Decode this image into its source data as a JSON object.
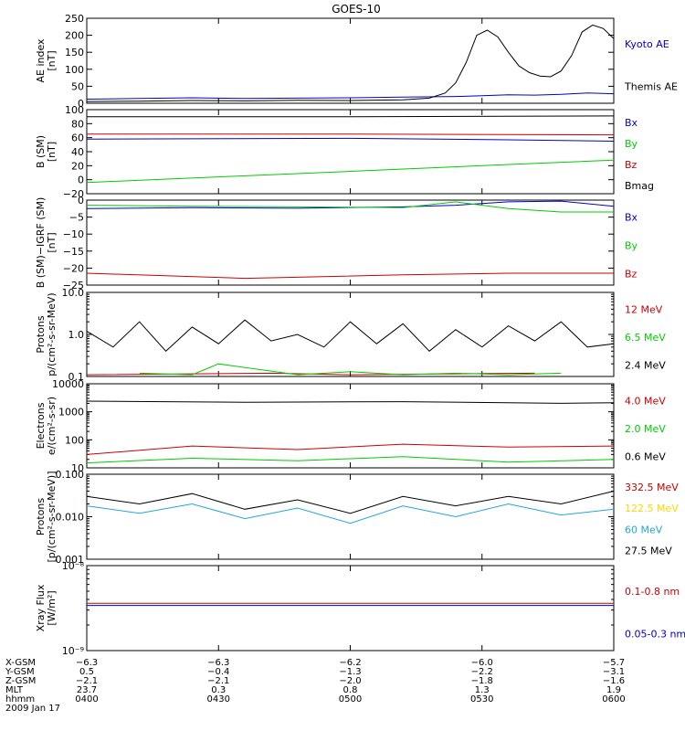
{
  "title": "GOES-10",
  "chart_data": [
    {
      "type": "line",
      "ylabel": [
        "AE index",
        "[nT]"
      ],
      "ylim": [
        0,
        250
      ],
      "yticks": [
        0,
        50,
        100,
        150,
        200,
        250
      ],
      "ytick_labels": [
        "0",
        "50",
        "100",
        "150",
        "200",
        "250"
      ],
      "series": [
        {
          "name": "Kyoto AE",
          "color": "#0000cc",
          "x": [
            0,
            0.1,
            0.2,
            0.3,
            0.4,
            0.5,
            0.6,
            0.7,
            0.75,
            0.8,
            0.85,
            0.9,
            0.95,
            1.0
          ],
          "y": [
            12,
            14,
            16,
            14,
            15,
            16,
            18,
            20,
            22,
            25,
            24,
            26,
            30,
            28
          ]
        },
        {
          "name": "Themis AE",
          "color": "#000000",
          "x": [
            0,
            0.1,
            0.2,
            0.3,
            0.4,
            0.5,
            0.6,
            0.65,
            0.68,
            0.7,
            0.72,
            0.74,
            0.76,
            0.78,
            0.8,
            0.82,
            0.84,
            0.86,
            0.88,
            0.9,
            0.92,
            0.94,
            0.96,
            0.98,
            1.0
          ],
          "y": [
            5,
            6,
            8,
            7,
            9,
            8,
            10,
            15,
            30,
            60,
            120,
            200,
            215,
            195,
            150,
            110,
            90,
            80,
            78,
            95,
            140,
            210,
            230,
            220,
            190
          ]
        }
      ]
    },
    {
      "type": "line",
      "ylabel": [
        "B (SM)",
        "[nT]"
      ],
      "ylim": [
        -20,
        100
      ],
      "yticks": [
        -20,
        0,
        20,
        40,
        60,
        80,
        100
      ],
      "ytick_labels": [
        "−20",
        "0",
        "20",
        "40",
        "60",
        "80",
        "100"
      ],
      "series": [
        {
          "name": "Bx",
          "color": "#0000cc",
          "x": [
            0,
            0.5,
            0.8,
            1.0
          ],
          "y": [
            58,
            59,
            57,
            55
          ]
        },
        {
          "name": "By",
          "color": "#00cc00",
          "x": [
            0,
            0.25,
            0.5,
            0.75,
            1.0
          ],
          "y": [
            -4,
            4,
            12,
            20,
            28
          ]
        },
        {
          "name": "Bz",
          "color": "#cc0000",
          "x": [
            0,
            0.5,
            1.0
          ],
          "y": [
            65,
            65,
            64
          ]
        },
        {
          "name": "Bmag",
          "color": "#000000",
          "x": [
            0,
            0.5,
            1.0
          ],
          "y": [
            90,
            90,
            91
          ]
        }
      ]
    },
    {
      "type": "line",
      "ylabel": [
        "B (SM)−IGRF (SM)",
        "[nT]"
      ],
      "ylim": [
        -25,
        0
      ],
      "yticks": [
        -25,
        -20,
        -15,
        -10,
        -5,
        0
      ],
      "ytick_labels": [
        "−25",
        "−20",
        "−15",
        "−10",
        "−5",
        "0"
      ],
      "series": [
        {
          "name": "Bx",
          "color": "#0000cc",
          "x": [
            0,
            0.2,
            0.4,
            0.6,
            0.7,
            0.8,
            0.9,
            1.0
          ],
          "y": [
            -2.5,
            -2.2,
            -2.4,
            -2.0,
            -1.5,
            -0.5,
            -0.3,
            -1.8
          ]
        },
        {
          "name": "By",
          "color": "#00cc00",
          "x": [
            0,
            0.2,
            0.4,
            0.6,
            0.7,
            0.8,
            0.9,
            1.0
          ],
          "y": [
            -1.5,
            -1.8,
            -2.0,
            -2.2,
            -0.5,
            -2.5,
            -3.5,
            -3.5
          ]
        },
        {
          "name": "Bz",
          "color": "#cc0000",
          "x": [
            0,
            0.3,
            0.6,
            0.8,
            1.0
          ],
          "y": [
            -21.5,
            -23,
            -22,
            -21.5,
            -21.5
          ]
        }
      ]
    },
    {
      "type": "line",
      "yscale": "log",
      "ylabel": [
        "Protons",
        "p/(cm²-s-sr-MeV)"
      ],
      "ylim": [
        0.1,
        10.0
      ],
      "yticks": [
        0.1,
        1.0,
        10.0
      ],
      "ytick_labels": [
        "0.1",
        "1.0",
        "10.0"
      ],
      "series": [
        {
          "name": "12 MeV",
          "color": "#cc0000",
          "x": [
            0,
            0.35,
            0.5,
            0.85
          ],
          "y": [
            0.11,
            0.12,
            0.11,
            0.12
          ]
        },
        {
          "name": "6.5 MeV",
          "color": "#00cc00",
          "x": [
            0.1,
            0.2,
            0.25,
            0.4,
            0.5,
            0.6,
            0.7,
            0.8,
            0.9
          ],
          "y": [
            0.12,
            0.11,
            0.2,
            0.11,
            0.13,
            0.11,
            0.12,
            0.11,
            0.12
          ]
        },
        {
          "name": "2.4 MeV",
          "color": "#000000",
          "x": [
            0,
            0.05,
            0.1,
            0.15,
            0.2,
            0.25,
            0.3,
            0.35,
            0.4,
            0.45,
            0.5,
            0.55,
            0.6,
            0.65,
            0.7,
            0.75,
            0.8,
            0.85,
            0.9,
            0.95,
            1.0
          ],
          "y": [
            1.2,
            0.5,
            2.0,
            0.4,
            1.5,
            0.6,
            2.2,
            0.7,
            1.0,
            0.5,
            2.0,
            0.6,
            1.8,
            0.4,
            1.3,
            0.5,
            1.6,
            0.7,
            2.0,
            0.5,
            0.6
          ]
        }
      ]
    },
    {
      "type": "line",
      "yscale": "log",
      "ylabel": [
        "Electrons",
        "e/(cm²-s-sr)"
      ],
      "ylim": [
        10,
        10000
      ],
      "yticks": [
        10,
        100,
        1000,
        10000
      ],
      "ytick_labels": [
        "10",
        "100",
        "1000",
        "10000"
      ],
      "series": [
        {
          "name": "4.0 MeV",
          "color": "#cc0000",
          "x": [
            0,
            0.2,
            0.4,
            0.6,
            0.8,
            1.0
          ],
          "y": [
            30,
            60,
            45,
            70,
            55,
            60
          ]
        },
        {
          "name": "2.0 MeV",
          "color": "#00cc00",
          "x": [
            0,
            0.2,
            0.4,
            0.6,
            0.8,
            1.0
          ],
          "y": [
            15,
            22,
            18,
            25,
            16,
            20
          ]
        },
        {
          "name": "0.6 MeV",
          "color": "#000000",
          "x": [
            0,
            0.3,
            0.6,
            0.9,
            1.0
          ],
          "y": [
            2400,
            2200,
            2300,
            2000,
            2100
          ]
        }
      ]
    },
    {
      "type": "line",
      "yscale": "log",
      "ylabel": [
        "Protons",
        "[p/(cm²-s-sr-MeV)]"
      ],
      "ylim": [
        0.001,
        0.1
      ],
      "yticks": [
        0.001,
        0.01,
        0.1
      ],
      "ytick_labels": [
        "0.001",
        "0.010",
        "0.100"
      ],
      "series": [
        {
          "name": "332.5 MeV",
          "color": "#cc0000",
          "x": [],
          "y": []
        },
        {
          "name": "122.5 MeV",
          "color": "#ffd700",
          "x": [],
          "y": []
        },
        {
          "name": "60 MeV",
          "color": "#22a7d9",
          "x": [
            0,
            0.1,
            0.2,
            0.3,
            0.4,
            0.5,
            0.6,
            0.7,
            0.8,
            0.9,
            1.0
          ],
          "y": [
            0.018,
            0.012,
            0.02,
            0.009,
            0.016,
            0.007,
            0.018,
            0.01,
            0.02,
            0.011,
            0.015
          ]
        },
        {
          "name": "27.5 MeV",
          "color": "#000000",
          "x": [
            0,
            0.1,
            0.2,
            0.3,
            0.4,
            0.5,
            0.6,
            0.7,
            0.8,
            0.9,
            1.0
          ],
          "y": [
            0.03,
            0.02,
            0.035,
            0.015,
            0.025,
            0.012,
            0.03,
            0.018,
            0.03,
            0.02,
            0.04
          ]
        }
      ]
    },
    {
      "type": "line",
      "yscale": "log",
      "ylabel": [
        "Xray Flux",
        "[W/m²]"
      ],
      "ylim": [
        1e-09,
        1e-08
      ],
      "yticks": [
        1e-09,
        1e-08
      ],
      "ytick_labels": [
        "10⁻⁹",
        "10⁻⁸"
      ],
      "series": [
        {
          "name": "0.1-0.8 nm",
          "color": "#cc0000",
          "x": [
            0,
            1.0
          ],
          "y": [
            3.6e-09,
            3.6e-09
          ]
        },
        {
          "name": "0.05-0.3 nm",
          "color": "#0000cc",
          "x": [
            0,
            1.0
          ],
          "y": [
            3.4e-09,
            3.4e-09
          ]
        }
      ]
    }
  ],
  "xaxis": {
    "rows": [
      {
        "label": "X-GSM",
        "values": [
          "−6.3",
          "−6.3",
          "−6.2",
          "−6.0",
          "−5.7"
        ]
      },
      {
        "label": "Y-GSM",
        "values": [
          "0.5",
          "−0.4",
          "−1.3",
          "−2.2",
          "−3.1"
        ]
      },
      {
        "label": "Z-GSM",
        "values": [
          "−2.1",
          "−2.1",
          "−2.0",
          "−1.8",
          "−1.6"
        ]
      },
      {
        "label": "MLT",
        "values": [
          "23.7",
          "0.3",
          "0.8",
          "1.3",
          "1.9"
        ]
      },
      {
        "label": "hhmm",
        "values": [
          "0400",
          "0430",
          "0500",
          "0530",
          "0600"
        ]
      }
    ],
    "date": "2009 Jan 17"
  }
}
